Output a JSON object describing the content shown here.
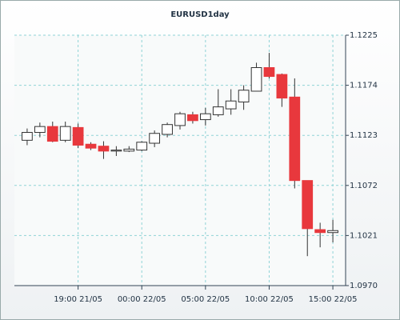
{
  "chart_data": {
    "type": "candlestick",
    "title": "EURUSD1day",
    "x": [
      0,
      1,
      2,
      3,
      4,
      5,
      6,
      7,
      8,
      9,
      10,
      11,
      12,
      13,
      14,
      15,
      16,
      17,
      18,
      19,
      20,
      21,
      22,
      23,
      24
    ],
    "open": [
      1.1118,
      1.1126,
      1.1132,
      1.1118,
      1.1131,
      1.1114,
      1.1112,
      1.1107,
      1.1107,
      1.1108,
      1.1115,
      1.1124,
      1.1133,
      1.1144,
      1.1139,
      1.1144,
      1.115,
      1.1157,
      1.1168,
      1.1192,
      1.1185,
      1.1162,
      1.1077,
      1.1027,
      1.1024
    ],
    "high": [
      1.113,
      1.1136,
      1.1137,
      1.1137,
      1.1135,
      1.1116,
      1.1117,
      1.1112,
      1.1112,
      1.1117,
      1.1128,
      1.1136,
      1.1147,
      1.1147,
      1.1151,
      1.117,
      1.117,
      1.1174,
      1.1197,
      1.1207,
      1.1186,
      1.1181,
      1.1077,
      1.1034,
      1.1037
    ],
    "low": [
      1.1113,
      1.1121,
      1.1116,
      1.1116,
      1.111,
      1.1108,
      1.1099,
      1.1102,
      1.1106,
      1.1107,
      1.1111,
      1.1121,
      1.1129,
      1.1135,
      1.1133,
      1.1142,
      1.1144,
      1.1149,
      1.1168,
      1.1181,
      1.1152,
      1.1069,
      1.1,
      1.1009,
      1.1014
    ],
    "close": [
      1.1126,
      1.1132,
      1.1117,
      1.1132,
      1.1113,
      1.111,
      1.1107,
      1.1108,
      1.1109,
      1.1116,
      1.1125,
      1.1134,
      1.1145,
      1.1138,
      1.1145,
      1.1152,
      1.1158,
      1.1169,
      1.1192,
      1.1183,
      1.1161,
      1.1077,
      1.1028,
      1.1024,
      1.1026
    ],
    "up_color": "#ffffff",
    "down_color": "#e8383d",
    "edge_color": "#333333",
    "xlim": [
      -1,
      25
    ],
    "xticks": [
      {
        "value": 4,
        "label": "19:00 21/05"
      },
      {
        "value": 9,
        "label": "00:00 22/05"
      },
      {
        "value": 14,
        "label": "05:00 22/05"
      },
      {
        "value": 19,
        "label": "10:00 22/05"
      },
      {
        "value": 24,
        "label": "15:00 22/05"
      }
    ],
    "ylim": [
      1.097,
      1.1225
    ],
    "yticks": [
      {
        "value": 1.097,
        "label": "1.0970"
      },
      1.1021,
      1.1072,
      1.1123,
      1.1174,
      1.1225
    ],
    "grid": true
  }
}
